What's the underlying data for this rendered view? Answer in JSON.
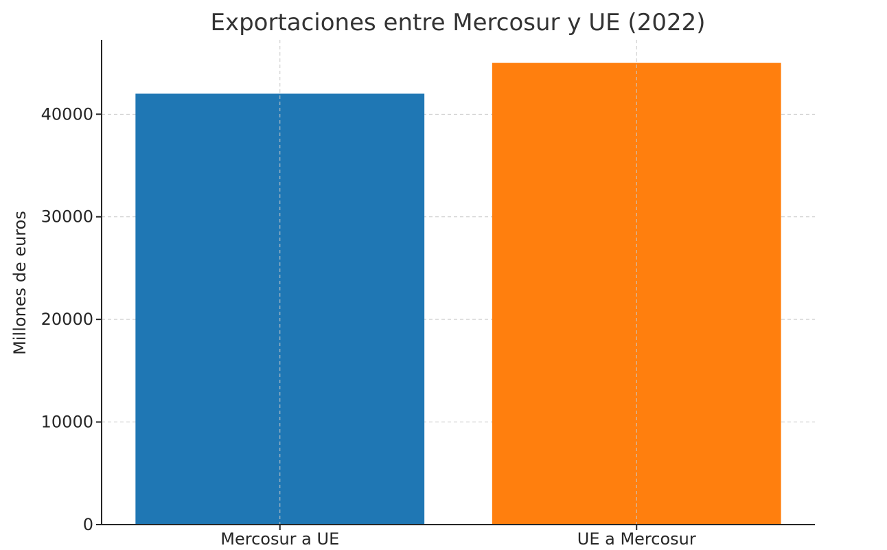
{
  "chart_data": {
    "type": "bar",
    "title": "Exportaciones entre Mercosur y UE (2022)",
    "xlabel": "",
    "ylabel": "Millones de euros",
    "categories": [
      "Mercosur a UE",
      "UE a Mercosur"
    ],
    "values": [
      42000,
      45000
    ],
    "colors": [
      "#1f77b4",
      "#ff7f0e"
    ],
    "yticks": [
      0,
      10000,
      20000,
      30000,
      40000
    ],
    "ytick_labels": [
      "0",
      "10000",
      "20000",
      "30000",
      "40000"
    ],
    "ylim": [
      0,
      47250
    ],
    "grid": true
  }
}
